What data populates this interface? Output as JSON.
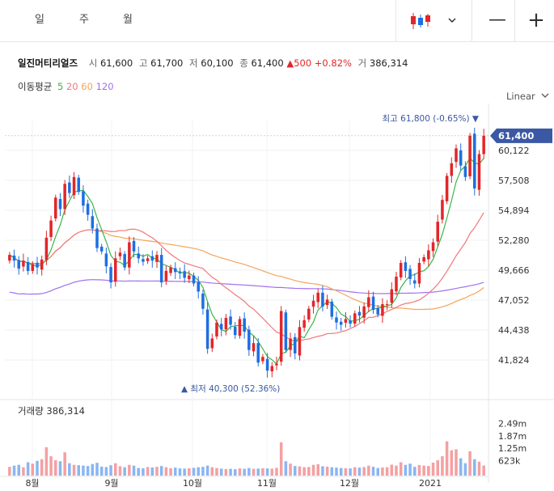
{
  "tabs": [
    {
      "label": "일",
      "active": true
    },
    {
      "label": "주",
      "active": false
    },
    {
      "label": "월",
      "active": false
    }
  ],
  "controls": {
    "chart_type_icon": "candlestick-icon",
    "dropdown_icon": "chevron-down-icon",
    "zoom_out": "—",
    "zoom_in": "+"
  },
  "stock": {
    "name": "일진머티리얼즈",
    "open_label": "시",
    "open": "61,600",
    "high_label": "고",
    "high": "61,700",
    "low_label": "저",
    "low": "60,100",
    "close_label": "종",
    "close": "61,400",
    "change": "▲500",
    "change_pct": "+0.82%",
    "volume_label": "거",
    "volume": "386,314"
  },
  "ma_legend": {
    "label": "이동평균",
    "p5": "5",
    "p20": "20",
    "p60": "60",
    "p120": "120"
  },
  "scale_mode": "Linear",
  "colors": {
    "up": "#e2262a",
    "down": "#1e6fe0",
    "ma5": "#3bb54a",
    "ma20": "#f2787a",
    "ma60": "#f5a45b",
    "ma120": "#a26ff0",
    "accent": "#3a58a3"
  },
  "chart_data": {
    "type": "candlestick",
    "y_ticks": [
      "60,122",
      "57,508",
      "54,894",
      "52,280",
      "49,666",
      "47,052",
      "44,438",
      "41,824"
    ],
    "ylim": [
      39500,
      62800
    ],
    "x_labels": [
      "8월",
      "9월",
      "10월",
      "11월",
      "12월",
      "2021"
    ],
    "current_price": "61,400",
    "high_annotation": "최고 61,800 (-0.65%)",
    "low_annotation": "최저 40,300 (52.36%)",
    "volume_title": "거래량",
    "volume_value": "386,314",
    "volume_ticks": [
      "2.49m",
      "1.87m",
      "1.25m",
      "623k"
    ],
    "volume_max": 2800000,
    "closes": [
      51000,
      50500,
      49800,
      50500,
      49600,
      50200,
      49900,
      50600,
      52500,
      54000,
      56000,
      55000,
      57200,
      56400,
      57800,
      56500,
      55300,
      54500,
      53300,
      51600,
      51300,
      50000,
      48600,
      50700,
      51200,
      49900,
      52100,
      51300,
      50700,
      50400,
      50700,
      50500,
      51000,
      48600,
      49600,
      49900,
      49500,
      49400,
      49000,
      49200,
      48500,
      47800,
      46300,
      42800,
      43700,
      45100,
      44500,
      45500,
      44900,
      44000,
      45400,
      44300,
      42700,
      43300,
      41600,
      42100,
      40900,
      41300,
      41500,
      46100,
      42700,
      43700,
      42400,
      44700,
      45300,
      46300,
      47000,
      47700,
      46500,
      47100,
      45600,
      45100,
      44900,
      45400,
      45000,
      45900,
      45700,
      46500,
      47300,
      46200,
      45800,
      46700,
      46700,
      48000,
      49100,
      50300,
      49600,
      48900,
      48500,
      50300,
      50800,
      51400,
      52100,
      53900,
      55800,
      57900,
      59000,
      60300,
      58800,
      57800,
      61400,
      56800,
      59800,
      61400
    ],
    "volumes": [
      320000,
      380000,
      420000,
      300000,
      550000,
      480000,
      620000,
      700000,
      1300000,
      850000,
      650000,
      600000,
      1050000,
      500000,
      420000,
      400000,
      380000,
      360000,
      460000,
      520000,
      330000,
      310000,
      400000,
      500000,
      350000,
      300000,
      420000,
      380000,
      260000,
      250000,
      310000,
      290000,
      320000,
      360000,
      300000,
      250000,
      280000,
      240000,
      230000,
      250000,
      270000,
      300000,
      320000,
      380000,
      300000,
      260000,
      230000,
      210000,
      220000,
      200000,
      240000,
      220000,
      260000,
      220000,
      230000,
      250000,
      240000,
      230000,
      270000,
      1550000,
      600000,
      480000,
      360000,
      340000,
      300000,
      310000,
      420000,
      450000,
      350000,
      330000,
      300000,
      280000,
      260000,
      250000,
      240000,
      300000,
      280000,
      310000,
      380000,
      320000,
      260000,
      290000,
      300000,
      430000,
      380000,
      550000,
      420000,
      480000,
      320000,
      410000,
      380000,
      360000,
      530000,
      650000,
      850000,
      1600000,
      1150000,
      1200000,
      750000,
      500000,
      1100000,
      700000,
      580000,
      386314
    ]
  }
}
